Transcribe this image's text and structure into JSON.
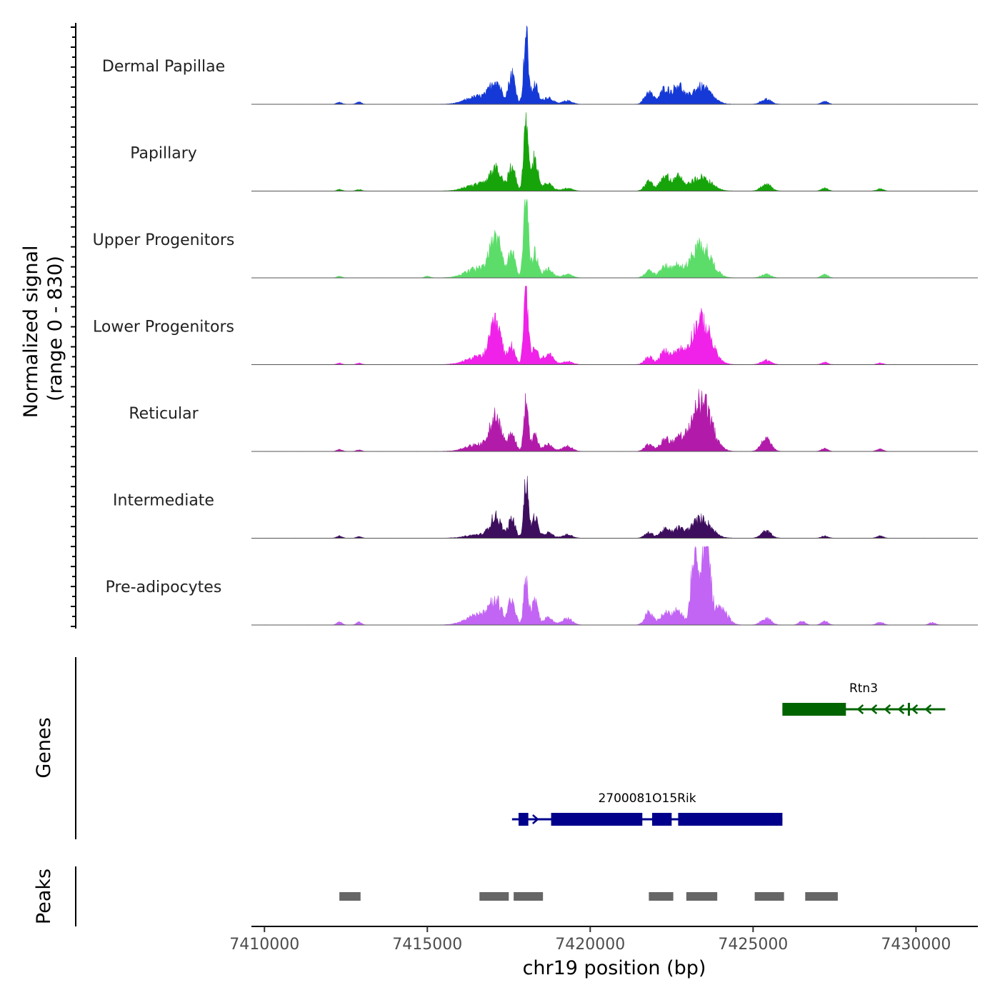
{
  "chart_data": {
    "type": "area",
    "title": "",
    "ylabel": "Normalized signal\n(range 0 - 830)",
    "xlabel": "chr19 position (bp)",
    "x_range": [
      7409600,
      7431900
    ],
    "y_range": [
      0,
      830
    ],
    "x_ticks": [
      7410000,
      7415000,
      7420000,
      7425000,
      7430000
    ],
    "x_tick_labels": [
      "7410000",
      "7415000",
      "7420000",
      "7425000",
      "7430000"
    ],
    "coverage_tracks": [
      {
        "name": "Dermal Papillae",
        "color": "#1539d6",
        "peaks": [
          [
            7412300,
            25,
            80
          ],
          [
            7412900,
            30,
            80
          ],
          [
            7416600,
            90,
            400
          ],
          [
            7417100,
            230,
            170
          ],
          [
            7417600,
            340,
            100
          ],
          [
            7418030,
            800,
            70
          ],
          [
            7418300,
            220,
            90
          ],
          [
            7418700,
            80,
            150
          ],
          [
            7419300,
            40,
            150
          ],
          [
            7421800,
            140,
            130
          ],
          [
            7422300,
            180,
            150
          ],
          [
            7422700,
            210,
            140
          ],
          [
            7423400,
            200,
            300
          ],
          [
            7425400,
            60,
            150
          ],
          [
            7427200,
            40,
            100
          ]
        ]
      },
      {
        "name": "Papillary",
        "color": "#16a40a",
        "peaks": [
          [
            7412300,
            20,
            80
          ],
          [
            7412900,
            20,
            80
          ],
          [
            7416600,
            80,
            400
          ],
          [
            7417100,
            230,
            170
          ],
          [
            7417600,
            300,
            100
          ],
          [
            7418030,
            800,
            70
          ],
          [
            7418300,
            380,
            90
          ],
          [
            7418700,
            90,
            150
          ],
          [
            7419300,
            30,
            150
          ],
          [
            7421800,
            100,
            130
          ],
          [
            7422300,
            170,
            150
          ],
          [
            7422700,
            150,
            140
          ],
          [
            7423400,
            160,
            300
          ],
          [
            7425400,
            80,
            150
          ],
          [
            7427200,
            40,
            100
          ],
          [
            7428900,
            30,
            100
          ]
        ]
      },
      {
        "name": "Upper Progenitors",
        "color": "#5cdd6a",
        "peaks": [
          [
            7412300,
            20,
            80
          ],
          [
            7415000,
            20,
            80
          ],
          [
            7416600,
            110,
            400
          ],
          [
            7417100,
            420,
            170
          ],
          [
            7417600,
            300,
            100
          ],
          [
            7418030,
            1000,
            70
          ],
          [
            7418300,
            280,
            90
          ],
          [
            7418700,
            100,
            150
          ],
          [
            7419300,
            40,
            150
          ],
          [
            7421800,
            80,
            130
          ],
          [
            7422300,
            140,
            150
          ],
          [
            7422700,
            130,
            140
          ],
          [
            7423400,
            370,
            300
          ],
          [
            7425400,
            40,
            150
          ],
          [
            7427200,
            50,
            100
          ]
        ]
      },
      {
        "name": "Lower Progenitors",
        "color": "#f021e8",
        "peaks": [
          [
            7412300,
            20,
            80
          ],
          [
            7412900,
            20,
            80
          ],
          [
            7416600,
            90,
            400
          ],
          [
            7417100,
            430,
            170
          ],
          [
            7417600,
            210,
            100
          ],
          [
            7418030,
            800,
            70
          ],
          [
            7418300,
            190,
            90
          ],
          [
            7418700,
            120,
            150
          ],
          [
            7419300,
            40,
            150
          ],
          [
            7421800,
            90,
            130
          ],
          [
            7422300,
            150,
            150
          ],
          [
            7422700,
            140,
            140
          ],
          [
            7423400,
            500,
            300
          ],
          [
            7425400,
            50,
            150
          ],
          [
            7427200,
            30,
            100
          ],
          [
            7428900,
            20,
            100
          ]
        ]
      },
      {
        "name": "Reticular",
        "color": "#b21aaa",
        "peaks": [
          [
            7412300,
            25,
            80
          ],
          [
            7412900,
            20,
            80
          ],
          [
            7416600,
            80,
            400
          ],
          [
            7417100,
            370,
            170
          ],
          [
            7417600,
            220,
            100
          ],
          [
            7418030,
            550,
            70
          ],
          [
            7418300,
            180,
            90
          ],
          [
            7418700,
            80,
            150
          ],
          [
            7419300,
            60,
            150
          ],
          [
            7421800,
            80,
            130
          ],
          [
            7422300,
            140,
            150
          ],
          [
            7422700,
            120,
            140
          ],
          [
            7423400,
            590,
            300
          ],
          [
            7425400,
            140,
            150
          ],
          [
            7427200,
            40,
            100
          ],
          [
            7428900,
            30,
            100
          ]
        ]
      },
      {
        "name": "Intermediate",
        "color": "#3e0e5e",
        "peaks": [
          [
            7412300,
            30,
            80
          ],
          [
            7412900,
            20,
            80
          ],
          [
            7416600,
            40,
            400
          ],
          [
            7417100,
            230,
            170
          ],
          [
            7417600,
            220,
            100
          ],
          [
            7418030,
            650,
            70
          ],
          [
            7418300,
            240,
            90
          ],
          [
            7418700,
            60,
            150
          ],
          [
            7419300,
            40,
            150
          ],
          [
            7421800,
            60,
            130
          ],
          [
            7422300,
            100,
            150
          ],
          [
            7422700,
            100,
            140
          ],
          [
            7423400,
            220,
            300
          ],
          [
            7425400,
            80,
            150
          ],
          [
            7427200,
            30,
            100
          ],
          [
            7428900,
            30,
            100
          ]
        ]
      },
      {
        "name": "Pre-adipocytes",
        "color": "#c264f4",
        "peaks": [
          [
            7412300,
            40,
            80
          ],
          [
            7412900,
            40,
            80
          ],
          [
            7416600,
            120,
            400
          ],
          [
            7417100,
            240,
            170
          ],
          [
            7417600,
            300,
            100
          ],
          [
            7418030,
            560,
            70
          ],
          [
            7418300,
            270,
            90
          ],
          [
            7418700,
            80,
            150
          ],
          [
            7419300,
            80,
            150
          ],
          [
            7421800,
            140,
            130
          ],
          [
            7422300,
            140,
            150
          ],
          [
            7422700,
            180,
            140
          ],
          [
            7423200,
            880,
            100
          ],
          [
            7423550,
            1100,
            120
          ],
          [
            7424000,
            200,
            200
          ],
          [
            7425400,
            80,
            150
          ],
          [
            7426500,
            50,
            100
          ],
          [
            7427200,
            50,
            100
          ],
          [
            7428900,
            40,
            100
          ],
          [
            7430500,
            30,
            100
          ]
        ]
      }
    ],
    "genes_track": {
      "label": "Genes",
      "genes": [
        {
          "name": "Rtn3",
          "color": "#006400",
          "strand": "-",
          "start": 7425900,
          "end": 7430900,
          "exons": [
            [
              7425900,
              7427850
            ],
            [
              7429750,
              7429800
            ]
          ]
        },
        {
          "name": "2700081O15Rik",
          "color": "#00008b",
          "strand": "+",
          "start": 7417600,
          "end": 7425900,
          "exons": [
            [
              7417800,
              7418100
            ],
            [
              7418800,
              7421600
            ],
            [
              7421900,
              7422500
            ],
            [
              7422700,
              7425900
            ]
          ]
        }
      ]
    },
    "peaks_track": {
      "label": "Peaks",
      "color": "#666666",
      "regions": [
        [
          7412300,
          7412950
        ],
        [
          7416600,
          7417500
        ],
        [
          7417650,
          7418550
        ],
        [
          7421800,
          7422550
        ],
        [
          7422950,
          7423900
        ],
        [
          7425050,
          7425950
        ],
        [
          7426600,
          7427600
        ]
      ]
    }
  }
}
